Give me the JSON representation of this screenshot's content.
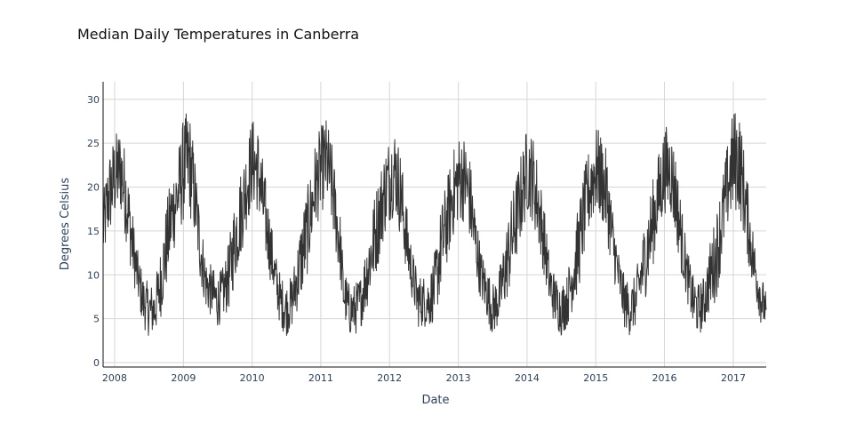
{
  "chart_data": {
    "type": "line",
    "title": "Median Daily Temperatures in Canberra",
    "xlabel": "Date",
    "ylabel": "Degrees Celsius",
    "xlim": [
      "2007-11-01",
      "2017-06-25"
    ],
    "ylim": [
      -0.5,
      32
    ],
    "x_ticks": [
      "2008",
      "2009",
      "2010",
      "2011",
      "2012",
      "2013",
      "2014",
      "2015",
      "2016",
      "2017"
    ],
    "y_ticks": [
      0,
      5,
      10,
      15,
      20,
      25,
      30
    ],
    "grid": true,
    "legend": "none",
    "series": [
      {
        "color": "#333333",
        "x": [
          "2007-11-01",
          "2007-12-01",
          "2008-01-01",
          "2008-02-01",
          "2008-03-01",
          "2008-04-01",
          "2008-05-01",
          "2008-06-01",
          "2008-07-01",
          "2008-08-01",
          "2008-09-01",
          "2008-10-01",
          "2008-11-01",
          "2008-12-01",
          "2009-01-01",
          "2009-02-01",
          "2009-03-01",
          "2009-04-01",
          "2009-05-01",
          "2009-06-01",
          "2009-07-01",
          "2009-08-01",
          "2009-09-01",
          "2009-10-01",
          "2009-11-01",
          "2009-12-01",
          "2010-01-01",
          "2010-02-01",
          "2010-03-01",
          "2010-04-01",
          "2010-05-01",
          "2010-06-01",
          "2010-07-01",
          "2010-08-01",
          "2010-09-01",
          "2010-10-01",
          "2010-11-01",
          "2010-12-01",
          "2011-01-01",
          "2011-02-01",
          "2011-03-01",
          "2011-04-15",
          "2011-05-01",
          "2011-06-01",
          "2011-07-01",
          "2011-08-01",
          "2011-09-01",
          "2011-10-01",
          "2011-11-01",
          "2011-12-01",
          "2012-01-01",
          "2012-02-01",
          "2012-03-01",
          "2012-04-01",
          "2012-05-01",
          "2012-06-01",
          "2012-07-01",
          "2012-08-01",
          "2012-09-01",
          "2012-10-01",
          "2012-11-01",
          "2012-12-01",
          "2013-01-01",
          "2013-02-01",
          "2013-03-01",
          "2013-04-01",
          "2013-05-01",
          "2013-06-01",
          "2013-07-01",
          "2013-08-01",
          "2013-09-01",
          "2013-10-01",
          "2013-11-01",
          "2013-12-01",
          "2014-01-01",
          "2014-02-01",
          "2014-03-01",
          "2014-04-01",
          "2014-05-01",
          "2014-06-01",
          "2014-07-01",
          "2014-08-01",
          "2014-09-01",
          "2014-10-01",
          "2014-11-01",
          "2014-12-01",
          "2015-01-01",
          "2015-02-01",
          "2015-03-01",
          "2015-04-01",
          "2015-05-01",
          "2015-06-01",
          "2015-07-01",
          "2015-08-01",
          "2015-09-01",
          "2015-10-01",
          "2015-11-01",
          "2015-12-01",
          "2016-01-01",
          "2016-02-01",
          "2016-03-01",
          "2016-04-01",
          "2016-05-01",
          "2016-06-01",
          "2016-07-01",
          "2016-08-01",
          "2016-09-01",
          "2016-10-01",
          "2016-11-01",
          "2016-12-01",
          "2017-01-01",
          "2017-02-01",
          "2017-03-01",
          "2017-04-01",
          "2017-05-01",
          "2017-06-01",
          "2017-06-25"
        ],
        "values": [
          15,
          19,
          21,
          22,
          19,
          14,
          10,
          7,
          6,
          6,
          9,
          13,
          17,
          19,
          22,
          23,
          19,
          13,
          9,
          8,
          7,
          8,
          10,
          14,
          17,
          20,
          23,
          22,
          18,
          14,
          10,
          7,
          6,
          7,
          10,
          13,
          16,
          20,
          22,
          23,
          20,
          13,
          8,
          6,
          6,
          7,
          10,
          13,
          16,
          19,
          21,
          22,
          19,
          14,
          10,
          7,
          7,
          7,
          9,
          13,
          16,
          19,
          21,
          21,
          19,
          14,
          10,
          8,
          6,
          7,
          10,
          13,
          16,
          19,
          22,
          21,
          18,
          14,
          9,
          7,
          6,
          7,
          10,
          13,
          17,
          20,
          22,
          21,
          19,
          14,
          10,
          7,
          6,
          7,
          10,
          13,
          16,
          19,
          22,
          22,
          19,
          14,
          10,
          7,
          6,
          7,
          10,
          12,
          16,
          20,
          23,
          23,
          19,
          14,
          10,
          7,
          6
        ],
        "amplitude": [
          4,
          5,
          5,
          5,
          5,
          4,
          3,
          3,
          3,
          3,
          4,
          5,
          5,
          5,
          6,
          6,
          5,
          4,
          3,
          3,
          3,
          3,
          4,
          5,
          5,
          5,
          5,
          5,
          5,
          4,
          3,
          3,
          3,
          3,
          4,
          5,
          5,
          5,
          5,
          5,
          5,
          4,
          3,
          3,
          3,
          3,
          4,
          5,
          5,
          5,
          5,
          5,
          5,
          4,
          3,
          3,
          3,
          3,
          4,
          5,
          5,
          5,
          5,
          5,
          5,
          4,
          3,
          3,
          3,
          3,
          4,
          5,
          5,
          5,
          5,
          5,
          5,
          4,
          3,
          3,
          3,
          3,
          4,
          5,
          5,
          5,
          5,
          5,
          5,
          4,
          3,
          3,
          3,
          3,
          4,
          5,
          5,
          5,
          5,
          5,
          5,
          4,
          3,
          3,
          3,
          3,
          4,
          5,
          5,
          5,
          6,
          6,
          5,
          4,
          3,
          3,
          2
        ]
      }
    ]
  }
}
